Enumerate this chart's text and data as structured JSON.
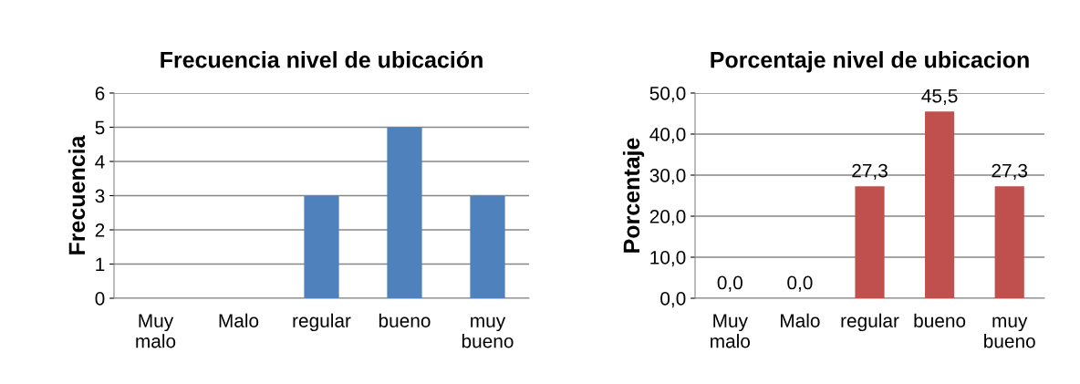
{
  "chart_data": [
    {
      "type": "bar",
      "title": "Frecuencia nivel de ubicación",
      "ylabel": "Frecuencia",
      "categories": [
        "Muy malo",
        "Malo",
        "regular",
        "bueno",
        "muy bueno"
      ],
      "values": [
        0,
        0,
        3,
        5,
        3
      ],
      "color": "#4f81bd",
      "ylim": [
        0,
        6
      ],
      "yticks": [
        0,
        1,
        2,
        3,
        4,
        5,
        6
      ],
      "grid": "y",
      "legend": false
    },
    {
      "type": "bar",
      "title": "Porcentaje nivel de ubicacion",
      "ylabel": "Porcentaje",
      "categories": [
        "Muy malo",
        "Malo",
        "regular",
        "bueno",
        "muy bueno"
      ],
      "values": [
        0.0,
        0.0,
        27.3,
        45.5,
        27.3
      ],
      "color": "#c0504d",
      "value_labels": [
        "0,0",
        "0,0",
        "27,3",
        "45,5",
        "27,3"
      ],
      "ylim": [
        0,
        50
      ],
      "yticks": [
        {
          "value": 0,
          "label": "0,0"
        },
        {
          "value": 10,
          "label": "10,0"
        },
        {
          "value": 20,
          "label": "20,0"
        },
        {
          "value": 30,
          "label": "30,0"
        },
        {
          "value": 40,
          "label": "40,0"
        },
        {
          "value": 50,
          "label": "50,0"
        }
      ],
      "grid": "y",
      "legend": false
    }
  ]
}
